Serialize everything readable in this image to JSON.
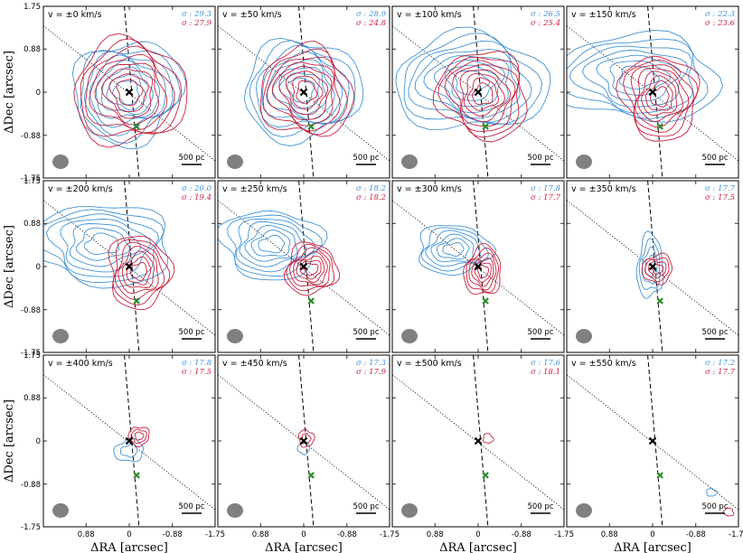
{
  "colors": {
    "blue": "#3f93d6",
    "red": "#c8203c",
    "green_marker": "#2e8b2e",
    "beam": "#808080"
  },
  "icons": {
    "center_marker": "black-x-marker",
    "offset_marker": "green-x-marker",
    "beam": "grey-ellipse"
  },
  "chart_data": {
    "type": "contour",
    "layout": {
      "rows": 3,
      "cols": 4
    },
    "xlabel": "ΔRA [arcsec]",
    "ylabel": "ΔDec [arcsec]",
    "xlim": [
      1.75,
      -1.75
    ],
    "ylim": [
      -1.75,
      1.75
    ],
    "xticks": [
      0.88,
      0,
      -0.88,
      -1.75
    ],
    "xtick_labels": [
      "0.88",
      "0",
      "-0.88",
      "-1.75"
    ],
    "yticks": [
      1.75,
      0.88,
      0,
      -0.88,
      -1.75
    ],
    "ytick_labels": [
      "1.75",
      "0.88",
      "0",
      "-0.88",
      "-1.75"
    ],
    "scale_bar_label": "500 pc",
    "sigma_prefix": "σ : ",
    "markers": {
      "center": {
        "x": 0,
        "y": 0
      },
      "offset": {
        "x": -0.15,
        "y": -0.7
      }
    },
    "lines": {
      "dashed": {
        "x1": 0.1,
        "y1": 1.75,
        "x2": -0.2,
        "y2": -1.75
      },
      "dotted": {
        "x1": 1.75,
        "y1": 1.35,
        "x2": -1.75,
        "y2": -1.4
      }
    },
    "panels": [
      {
        "velocity": "v = ±0 km/s",
        "sigma_blue": "29.3",
        "sigma_red": "27.9",
        "blue": {
          "cx": 0.05,
          "cy": 0.0,
          "n": 8,
          "r": 1.1,
          "ax": 1.0,
          "ay": 0.95
        },
        "red": {
          "cx": 0.0,
          "cy": 0.0,
          "n": 8,
          "r": 1.1,
          "ax": 1.0,
          "ay": 1.0
        }
      },
      {
        "velocity": "v = ±50 km/s",
        "sigma_blue": "28.9",
        "sigma_red": "24.8",
        "blue": {
          "cx": 0.05,
          "cy": 0.05,
          "n": 8,
          "r": 1.1,
          "ax": 1.05,
          "ay": 0.95
        },
        "red": {
          "cx": -0.05,
          "cy": 0.0,
          "n": 8,
          "r": 0.9,
          "ax": 1.0,
          "ay": 1.05
        }
      },
      {
        "velocity": "v = ±100 km/s",
        "sigma_blue": "26.5",
        "sigma_red": "25.4",
        "blue": {
          "cx": 0.15,
          "cy": 0.2,
          "n": 8,
          "r": 1.2,
          "ax": 1.25,
          "ay": 0.85
        },
        "red": {
          "cx": -0.1,
          "cy": -0.05,
          "n": 8,
          "r": 0.9,
          "ax": 1.0,
          "ay": 1.0
        }
      },
      {
        "velocity": "v = ±150 km/s",
        "sigma_blue": "22.3",
        "sigma_red": "23.6",
        "blue": {
          "cx": 0.3,
          "cy": 0.3,
          "n": 7,
          "r": 1.2,
          "ax": 1.35,
          "ay": 0.75
        },
        "red": {
          "cx": -0.15,
          "cy": -0.1,
          "n": 8,
          "r": 0.8,
          "ax": 1.0,
          "ay": 1.05
        }
      },
      {
        "velocity": "v = ±200 km/s",
        "sigma_blue": "20.0",
        "sigma_red": "19.4",
        "blue": {
          "cx": 0.55,
          "cy": 0.45,
          "n": 7,
          "r": 1.1,
          "ax": 1.3,
          "ay": 0.75
        },
        "red": {
          "cx": -0.2,
          "cy": -0.1,
          "n": 7,
          "r": 0.65,
          "ax": 1.0,
          "ay": 1.1
        }
      },
      {
        "velocity": "v = ±250 km/s",
        "sigma_blue": "18.2",
        "sigma_red": "18.2",
        "blue": {
          "cx": 0.65,
          "cy": 0.45,
          "n": 7,
          "r": 0.85,
          "ax": 1.25,
          "ay": 0.8
        },
        "red": {
          "cx": -0.15,
          "cy": -0.05,
          "n": 7,
          "r": 0.5,
          "ax": 1.1,
          "ay": 1.0
        }
      },
      {
        "velocity": "v = ±300 km/s",
        "sigma_blue": "17.8",
        "sigma_red": "17.7",
        "blue": {
          "cx": 0.5,
          "cy": 0.35,
          "n": 6,
          "r": 0.6,
          "ax": 1.3,
          "ay": 0.8
        },
        "red": {
          "cx": -0.1,
          "cy": -0.1,
          "n": 6,
          "r": 0.38,
          "ax": 1.0,
          "ay": 1.3
        }
      },
      {
        "velocity": "v = ±350 km/s",
        "sigma_blue": "17.7",
        "sigma_red": "17.5",
        "blue": {
          "cx": 0.05,
          "cy": 0.0,
          "n": 4,
          "r": 0.45,
          "ax": 0.6,
          "ay": 1.4
        },
        "red": {
          "cx": -0.1,
          "cy": -0.05,
          "n": 4,
          "r": 0.3,
          "ax": 1.0,
          "ay": 1.0
        }
      },
      {
        "velocity": "v = ±400 km/s",
        "sigma_blue": "17.8",
        "sigma_red": "17.5",
        "blue": {
          "cx": 0.0,
          "cy": -0.2,
          "n": 2,
          "r": 0.25,
          "ax": 1.2,
          "ay": 0.9
        },
        "red": {
          "cx": -0.2,
          "cy": 0.1,
          "n": 3,
          "r": 0.2,
          "ax": 1.0,
          "ay": 1.0
        }
      },
      {
        "velocity": "v = ±450 km/s",
        "sigma_blue": "17.3",
        "sigma_red": "17.9",
        "blue": {
          "cx": 0.0,
          "cy": -0.15,
          "n": 1,
          "r": 0.12,
          "ax": 1.0,
          "ay": 1.0
        },
        "red": {
          "cx": -0.05,
          "cy": 0.05,
          "n": 2,
          "r": 0.15,
          "ax": 1.0,
          "ay": 1.2
        }
      },
      {
        "velocity": "v = ±500 km/s",
        "sigma_blue": "17.6",
        "sigma_red": "18.1",
        "blue": {
          "cx": 0.0,
          "cy": 0.0,
          "n": 0,
          "r": 0.1,
          "ax": 1.0,
          "ay": 1.0
        },
        "red": {
          "cx": -0.2,
          "cy": 0.05,
          "n": 1,
          "r": 0.1,
          "ax": 1.0,
          "ay": 1.0
        }
      },
      {
        "velocity": "v = ±550 km/s",
        "sigma_blue": "17.2",
        "sigma_red": "17.7",
        "blue": {
          "cx": -1.2,
          "cy": -1.05,
          "n": 1,
          "r": 0.08,
          "ax": 1.3,
          "ay": 1.0
        },
        "red": {
          "cx": -1.55,
          "cy": -1.45,
          "n": 1,
          "r": 0.08,
          "ax": 1.3,
          "ay": 1.0
        }
      }
    ]
  }
}
